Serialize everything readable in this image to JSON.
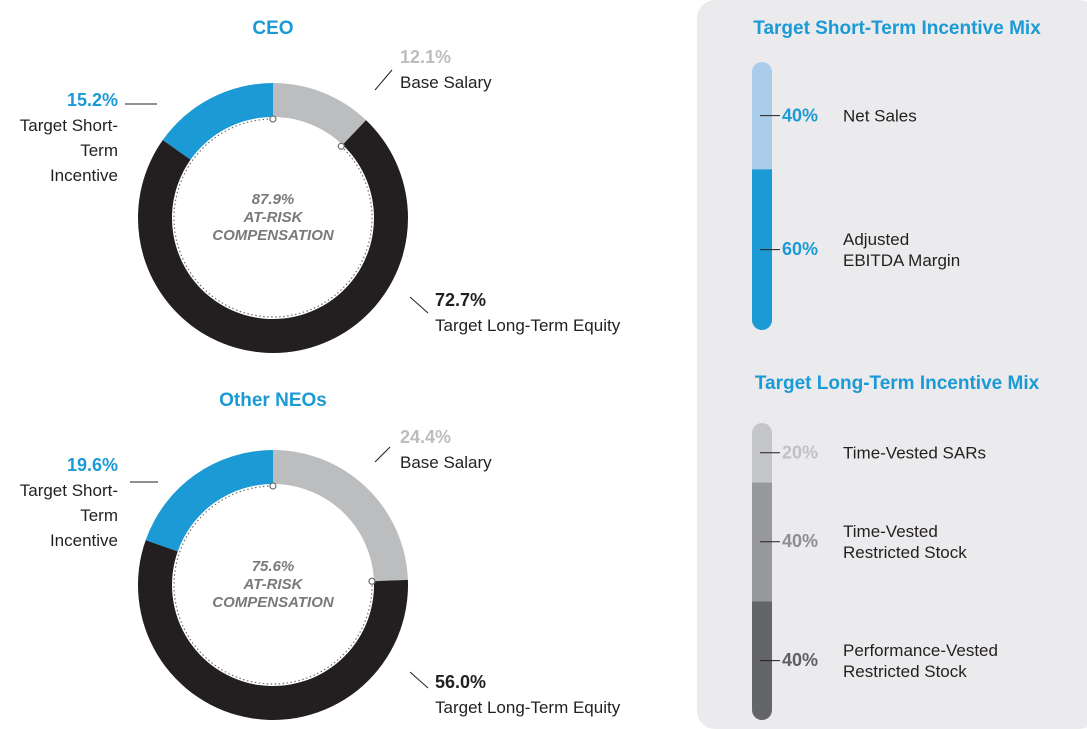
{
  "chart_data": [
    {
      "type": "donut",
      "title": "CEO",
      "categories": [
        "Base Salary",
        "Target Long-Term Equity",
        "Target Short-Term Incentive"
      ],
      "values": [
        12.1,
        72.7,
        15.2
      ],
      "value_labels": [
        "12.1%",
        "72.7%",
        "15.2%"
      ],
      "colors": [
        "#bcbdbf",
        "#231f20",
        "#1b9ad6"
      ],
      "annotation": {
        "value": 87.9,
        "label": "87.9%",
        "text": "AT-RISK COMPENSATION"
      }
    },
    {
      "type": "donut",
      "title": "Other NEOs",
      "categories": [
        "Base Salary",
        "Target Long-Term Equity",
        "Target Short-Term Incentive"
      ],
      "values": [
        24.4,
        56.0,
        19.6
      ],
      "value_labels": [
        "24.4%",
        "56.0%",
        "19.6%"
      ],
      "colors": [
        "#bcbdbf",
        "#231f20",
        "#1b9ad6"
      ],
      "annotation": {
        "value": 75.6,
        "label": "75.6%",
        "text": "AT-RISK COMPENSATION"
      }
    },
    {
      "type": "bar",
      "stacked": true,
      "title": "Target Short-Term Incentive Mix",
      "ylim": [
        0,
        100
      ],
      "series": [
        {
          "name": "Adjusted EBITDA Margin",
          "color": "#1b9ad6",
          "label_color": "#1b9ad6",
          "values": [
            60
          ],
          "value_labels": [
            "60%"
          ]
        },
        {
          "name": "Net Sales",
          "color": "#a9cdeb",
          "label_color": "#1b9ad6",
          "values": [
            40
          ],
          "value_labels": [
            "40%"
          ]
        }
      ]
    },
    {
      "type": "bar",
      "stacked": true,
      "title": "Target Long-Term Incentive Mix",
      "ylim": [
        0,
        100
      ],
      "series": [
        {
          "name": "Performance-Vested Restricted Stock",
          "color": "#646567",
          "label_color": "#5e5f61",
          "values": [
            40
          ],
          "value_labels": [
            "40%"
          ]
        },
        {
          "name": "Time-Vested Restricted Stock",
          "color": "#98999b",
          "label_color": "#8d8e90",
          "values": [
            40
          ],
          "value_labels": [
            "40%"
          ]
        },
        {
          "name": "Time-Vested SARs",
          "color": "#c5c6c8",
          "label_color": "#c0c1c3",
          "values": [
            20
          ],
          "value_labels": [
            "20%"
          ]
        }
      ]
    }
  ]
}
